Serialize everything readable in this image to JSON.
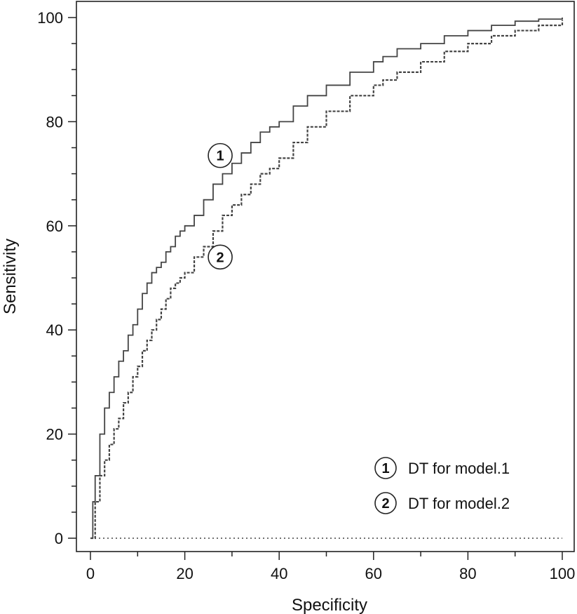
{
  "chart_data": {
    "type": "line",
    "title": "",
    "xlabel": "Specificity",
    "ylabel": "Sensitivity",
    "xlim": [
      0,
      100
    ],
    "ylim": [
      0,
      100
    ],
    "x_ticks": [
      "0",
      "20",
      "40",
      "60",
      "80",
      "100"
    ],
    "y_ticks": [
      "0",
      "20",
      "40",
      "60",
      "80",
      "100"
    ],
    "grid": false,
    "legend_position": "bottom-right",
    "reference_line": {
      "y": 0,
      "style": "dotted"
    },
    "series": [
      {
        "name": "DT for model.1",
        "marker": "1",
        "style": "solid",
        "color": "#444444",
        "x": [
          0,
          0.5,
          1,
          2,
          3,
          4,
          5,
          6,
          7,
          8,
          9,
          10,
          11,
          12,
          13,
          14,
          15,
          16,
          17,
          18,
          19,
          20,
          22,
          24,
          26,
          28,
          30,
          32,
          34,
          36,
          38,
          40,
          43,
          46,
          50,
          55,
          60,
          62,
          65,
          70,
          75,
          80,
          85,
          90,
          95,
          100
        ],
        "y": [
          0,
          7,
          12,
          20,
          25,
          28,
          31,
          34,
          36,
          39,
          41,
          44,
          47,
          49,
          51,
          52,
          53,
          55,
          56,
          58,
          59,
          60,
          62,
          65,
          68,
          70,
          72,
          74,
          76,
          78,
          79,
          80,
          83,
          85,
          87,
          89.5,
          91.5,
          92.5,
          94,
          95,
          96.5,
          97.5,
          98.5,
          99.3,
          99.7,
          100
        ]
      },
      {
        "name": "DT for model.2",
        "marker": "2",
        "style": "dashed",
        "color": "#444444",
        "x": [
          0,
          1,
          2,
          3,
          4,
          5,
          6,
          7,
          8,
          9,
          10,
          11,
          12,
          13,
          14,
          15,
          16,
          17,
          18,
          19,
          20,
          22,
          24,
          26,
          28,
          30,
          32,
          34,
          36,
          38,
          40,
          43,
          46,
          50,
          55,
          60,
          62,
          65,
          70,
          75,
          80,
          85,
          90,
          95,
          100
        ],
        "y": [
          0,
          7,
          12,
          15,
          18,
          21,
          23,
          26,
          28,
          31,
          33,
          36,
          38,
          40,
          42,
          44,
          46,
          48,
          49,
          50,
          51,
          54,
          56,
          59,
          62,
          64,
          66,
          68,
          70,
          71,
          73,
          76,
          79,
          82,
          85,
          87,
          88,
          89.5,
          91.5,
          93.5,
          95,
          96.5,
          97.5,
          98.5,
          99.5
        ]
      }
    ]
  }
}
